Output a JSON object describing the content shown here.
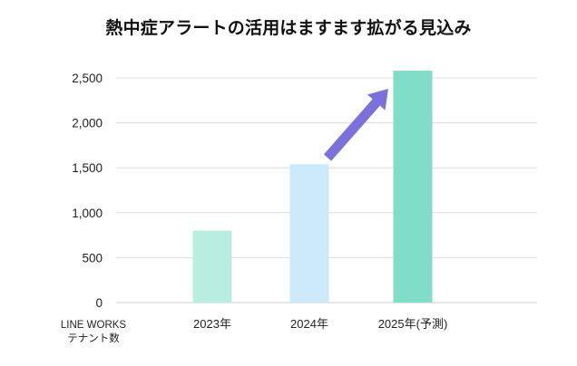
{
  "title": "熱中症アラートの活用はますます拡がる見込み",
  "chart_data": {
    "type": "bar",
    "title": "熱中症アラートの活用はますます拡がる見込み",
    "ylabel": "LINE WORKS テナント数",
    "ylabel_lines": [
      "LINE WORKS",
      "テナント数"
    ],
    "xlabel": "",
    "categories": [
      "2023年",
      "2024年",
      "2025年(予測)"
    ],
    "values": [
      800,
      1540,
      2580
    ],
    "bar_colors": [
      "#b9ede0",
      "#cdeafb",
      "#80ddc8"
    ],
    "ylim": [
      0,
      2500
    ],
    "y_ticks": [
      0,
      500,
      1000,
      1500,
      2000,
      2500
    ],
    "y_tick_labels": [
      "0",
      "500",
      "1,000",
      "1,500",
      "2,000",
      "2,500"
    ],
    "grid": true,
    "legend": "none",
    "annotations": [
      {
        "type": "arrow",
        "from_category": "2024年",
        "to_category": "2025年(予測)",
        "color": "#7a71db"
      }
    ]
  }
}
